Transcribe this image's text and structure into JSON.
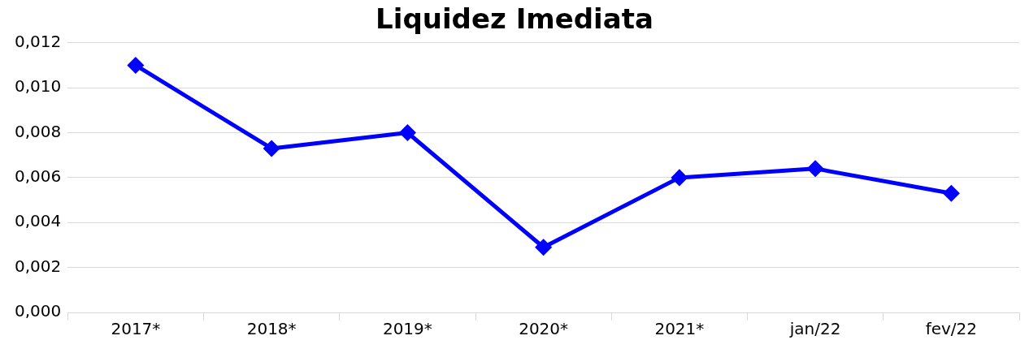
{
  "chart_data": {
    "type": "line",
    "title": "Liquidez Imediata",
    "categories": [
      "2017*",
      "2018*",
      "2019*",
      "2020*",
      "2021*",
      "jan/22",
      "fev/22"
    ],
    "series": [
      {
        "color": "#0000ff",
        "values": [
          0.011,
          0.0073,
          0.008,
          0.0029,
          0.006,
          0.0064,
          0.0053
        ]
      }
    ],
    "ylim": [
      0,
      0.012
    ],
    "yticks": [
      {
        "value": 0,
        "label": "0,000"
      },
      {
        "value": 0.002,
        "label": "0,002"
      },
      {
        "value": 0.004,
        "label": "0,004"
      },
      {
        "value": 0.006,
        "label": "0,006"
      },
      {
        "value": 0.008,
        "label": "0,008"
      },
      {
        "value": 0.01,
        "label": "0,010"
      },
      {
        "value": 0.012,
        "label": "0,012"
      }
    ],
    "grid": "y",
    "legend": false,
    "marker": "diamond",
    "line_style": "solid"
  }
}
